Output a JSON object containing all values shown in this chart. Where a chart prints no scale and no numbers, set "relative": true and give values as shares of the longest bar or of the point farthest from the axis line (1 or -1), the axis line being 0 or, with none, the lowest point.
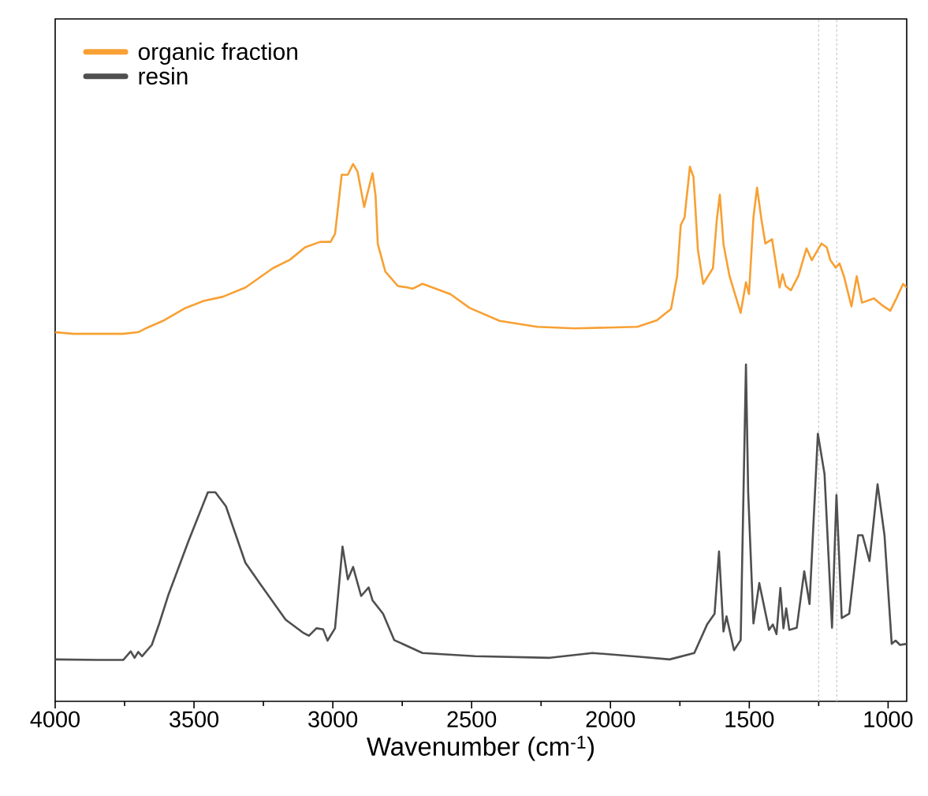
{
  "chart_data": {
    "type": "line",
    "xlabel": "Wavenumber (cm$^{-1}$)",
    "relative": true,
    "legend": "top left",
    "xlim": [
      4000,
      933
    ],
    "xticks": [
      4000,
      {
        "value": 3750,
        "label": null
      },
      3500,
      {
        "value": 3250,
        "label": null
      },
      3000,
      {
        "value": 2750,
        "label": null
      },
      2500,
      {
        "value": 2250,
        "label": null
      },
      2000,
      {
        "value": 1750,
        "label": null
      },
      1500,
      {
        "value": 1250,
        "label": null
      },
      1000
    ],
    "ref_lines": [
      {
        "axis": "x",
        "value": 1250,
        "color": "#cccccc",
        "line_style": "dashed"
      },
      {
        "axis": "x",
        "value": 1185,
        "color": "#cccccc",
        "line_style": "dashed"
      }
    ],
    "series": [
      {
        "name": "organic fraction",
        "color": "#f8a033",
        "x": [
          4000,
          3935,
          3755,
          3701,
          3666,
          3612,
          3531,
          3466,
          3396,
          3315,
          3216,
          3154,
          3100,
          3046,
          3008,
          2992,
          2968,
          2946,
          2927,
          2911,
          2887,
          2873,
          2857,
          2846,
          2838,
          2811,
          2766,
          2730,
          2712,
          2677,
          2577,
          2507,
          2399,
          2264,
          2129,
          1903,
          1833,
          1782,
          1760,
          1747,
          1733,
          1714,
          1701,
          1685,
          1666,
          1631,
          1617,
          1606,
          1593,
          1571,
          1531,
          1512,
          1501,
          1485,
          1472,
          1456,
          1442,
          1418,
          1391,
          1380,
          1369,
          1350,
          1323,
          1294,
          1275,
          1240,
          1221,
          1208,
          1189,
          1175,
          1159,
          1132,
          1113,
          1094,
          1051,
          1024,
          992,
          970,
          946,
          933
        ],
        "values": [
          0.687,
          0.684,
          0.684,
          0.687,
          0.696,
          0.708,
          0.732,
          0.745,
          0.753,
          0.77,
          0.806,
          0.822,
          0.845,
          0.855,
          0.855,
          0.87,
          0.98,
          0.98,
          1.0,
          0.986,
          0.92,
          0.95,
          0.983,
          0.941,
          0.851,
          0.8,
          0.773,
          0.77,
          0.768,
          0.777,
          0.758,
          0.732,
          0.708,
          0.697,
          0.694,
          0.697,
          0.709,
          0.73,
          0.791,
          0.886,
          0.901,
          0.995,
          0.976,
          0.84,
          0.777,
          0.806,
          0.896,
          0.943,
          0.851,
          0.791,
          0.723,
          0.78,
          0.758,
          0.901,
          0.956,
          0.896,
          0.852,
          0.86,
          0.77,
          0.795,
          0.773,
          0.765,
          0.792,
          0.843,
          0.821,
          0.852,
          0.845,
          0.821,
          0.807,
          0.815,
          0.791,
          0.735,
          0.791,
          0.742,
          0.75,
          0.738,
          0.727,
          0.75,
          0.777,
          0.77
        ]
      },
      {
        "name": "resin",
        "color": "#4f4f4f",
        "x": [
          4000,
          3844,
          3755,
          3728,
          3714,
          3701,
          3687,
          3652,
          3625,
          3593,
          3520,
          3450,
          3423,
          3385,
          3315,
          3261,
          3170,
          3108,
          3086,
          3059,
          3035,
          3019,
          2992,
          2965,
          2946,
          2927,
          2898,
          2871,
          2857,
          2819,
          2779,
          2677,
          2488,
          2218,
          2065,
          1895,
          1787,
          1698,
          1652,
          1625,
          1609,
          1593,
          1582,
          1555,
          1531,
          1512,
          1504,
          1485,
          1464,
          1429,
          1415,
          1402,
          1388,
          1377,
          1367,
          1356,
          1329,
          1302,
          1283,
          1253,
          1229,
          1202,
          1186,
          1167,
          1140,
          1108,
          1092,
          1067,
          1038,
          1013,
          987,
          973,
          957,
          933
        ],
        "values": [
          0.078,
          0.077,
          0.077,
          0.093,
          0.081,
          0.092,
          0.084,
          0.105,
          0.145,
          0.197,
          0.298,
          0.389,
          0.389,
          0.363,
          0.258,
          0.218,
          0.152,
          0.128,
          0.122,
          0.136,
          0.134,
          0.113,
          0.136,
          0.288,
          0.227,
          0.25,
          0.196,
          0.212,
          0.188,
          0.163,
          0.114,
          0.09,
          0.084,
          0.081,
          0.09,
          0.083,
          0.078,
          0.09,
          0.143,
          0.163,
          0.279,
          0.13,
          0.158,
          0.095,
          0.114,
          0.627,
          0.389,
          0.145,
          0.22,
          0.133,
          0.143,
          0.125,
          0.211,
          0.136,
          0.173,
          0.133,
          0.137,
          0.242,
          0.181,
          0.498,
          0.423,
          0.137,
          0.384,
          0.155,
          0.163,
          0.309,
          0.309,
          0.261,
          0.404,
          0.309,
          0.107,
          0.113,
          0.105,
          0.107
        ]
      }
    ]
  }
}
